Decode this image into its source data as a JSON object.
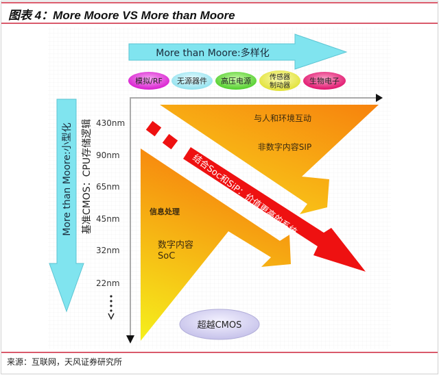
{
  "title": "图表 4：More Moore VS More than Moore",
  "source": "来源：互联网，天风证券研究所",
  "diagram": {
    "top_arrow_label": "More than Moore:多样化",
    "left_arrow_label": "More than Moore:小型化",
    "left_axis_label": "基准CMOS：CPU存储逻辑",
    "categories": [
      "模拟/RF",
      "无源器件",
      "高压电源",
      "传感器",
      "制动器",
      "生物电子"
    ],
    "nodes": [
      "430nm",
      "90nm",
      "65nm",
      "45nm",
      "32nm",
      "22nm"
    ],
    "upper_region": {
      "line1": "与人和环境互动",
      "line2": "非数字内容SIP"
    },
    "lower_region": {
      "line1": "信息处理",
      "line2": "数字内容",
      "line3": "SoC"
    },
    "combined_arrow": "结合Soc和SiP：价值更高的系统",
    "beyond": "超越CMOS",
    "colors": {
      "cyan": "#7fe3ee",
      "red": "#ee1111",
      "orange": "#f7900f",
      "yellow": "#f5ee1a",
      "accent_line": "#d9596a"
    }
  }
}
